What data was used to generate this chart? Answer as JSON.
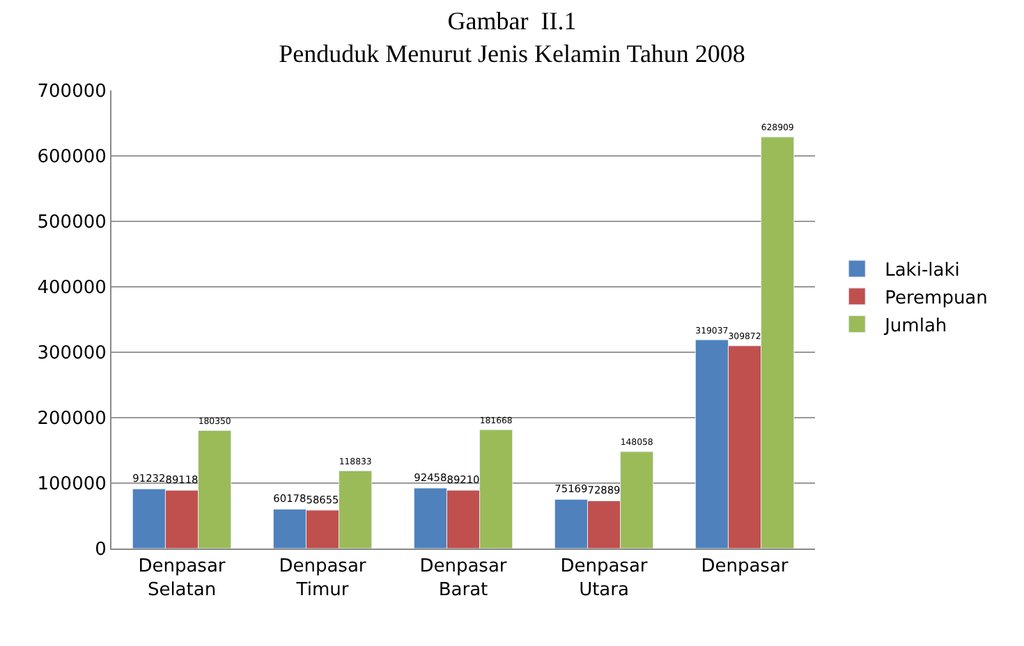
{
  "chart_data": {
    "type": "bar",
    "title": "Gambar  II.1",
    "subtitle": "Penduduk Menurut Jenis Kelamin Tahun 2008",
    "categories": [
      "Denpasar Selatan",
      "Denpasar Timur",
      "Denpasar Barat",
      "Denpasar Utara",
      "Denpasar"
    ],
    "series": [
      {
        "name": "Laki-laki",
        "color": "#4f81bd",
        "values": [
          91232,
          60178,
          92458,
          75169,
          319037
        ]
      },
      {
        "name": "Perempuan",
        "color": "#c0504d",
        "values": [
          89118,
          58655,
          89210,
          72889,
          309872
        ]
      },
      {
        "name": "Jumlah",
        "color": "#9bbb59",
        "values": [
          180350,
          118833,
          181668,
          148058,
          628909
        ]
      }
    ],
    "ylim": [
      0,
      700000
    ],
    "yticks": [
      0,
      100000,
      200000,
      300000,
      400000,
      500000,
      600000,
      700000
    ],
    "grid": "y",
    "legend": "right",
    "data_labels": true
  }
}
